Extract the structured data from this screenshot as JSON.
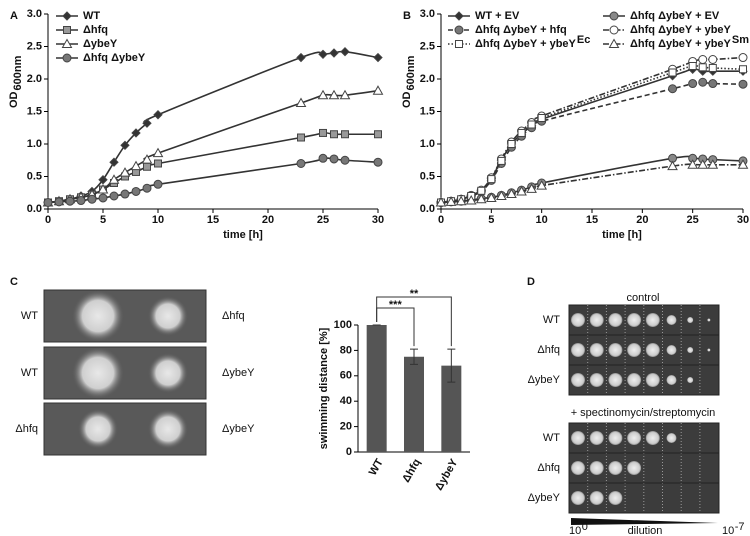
{
  "chart_data": [
    {
      "type": "line",
      "panel": "A",
      "xlabel": "time [h]",
      "ylabel": "OD",
      "ylabel_sub": "600nm",
      "x": [
        0,
        1,
        2,
        3,
        4,
        5,
        6,
        7,
        8,
        9,
        10,
        23,
        25,
        26,
        27,
        30
      ],
      "xlim": [
        0,
        30
      ],
      "xticks": [
        0,
        5,
        10,
        15,
        20,
        25,
        30
      ],
      "ylim": [
        0,
        3
      ],
      "yticks": [
        {
          "value": 0,
          "label": "0.0"
        },
        0.5,
        {
          "value": 1,
          "label": "1.0"
        },
        1.5,
        {
          "value": 2,
          "label": "2.0"
        },
        2.5,
        {
          "value": 3,
          "label": "3.0"
        }
      ],
      "series": [
        {
          "name": "WT",
          "color": "#333333",
          "marker": "diamond",
          "dash": "solid",
          "values": [
            0.1,
            0.12,
            0.15,
            0.2,
            0.27,
            0.45,
            0.72,
            0.98,
            1.17,
            1.32,
            1.45,
            2.33,
            2.38,
            2.4,
            2.42,
            2.33
          ]
        },
        {
          "name": "Δhfq",
          "color": "#999999",
          "marker": "square",
          "dash": "solid",
          "values": [
            0.1,
            0.12,
            0.15,
            0.18,
            0.22,
            0.3,
            0.4,
            0.5,
            0.57,
            0.65,
            0.7,
            1.1,
            1.17,
            1.15,
            1.15,
            1.15
          ]
        },
        {
          "name": "ΔybeY",
          "color": "#ffffff",
          "marker": "triangle",
          "dash": "solid",
          "values": [
            0.1,
            0.12,
            0.15,
            0.18,
            0.22,
            0.3,
            0.45,
            0.56,
            0.66,
            0.76,
            0.86,
            1.63,
            1.75,
            1.75,
            1.75,
            1.82
          ]
        },
        {
          "name": "Δhfq ΔybeY",
          "color": "#777777",
          "marker": "circle",
          "dash": "solid",
          "values": [
            0.1,
            0.11,
            0.12,
            0.13,
            0.15,
            0.17,
            0.2,
            0.23,
            0.27,
            0.32,
            0.38,
            0.7,
            0.78,
            0.77,
            0.75,
            0.72
          ]
        }
      ]
    },
    {
      "type": "line",
      "panel": "B",
      "xlabel": "time [h]",
      "ylabel": "OD",
      "ylabel_sub": "600nm",
      "x": [
        0,
        1,
        2,
        3,
        4,
        5,
        6,
        7,
        8,
        9,
        10,
        23,
        25,
        26,
        27,
        30
      ],
      "xlim": [
        0,
        30
      ],
      "xticks": [
        0,
        5,
        10,
        15,
        20,
        25,
        30
      ],
      "ylim": [
        0,
        3
      ],
      "yticks": [
        {
          "value": 0,
          "label": "0.0"
        },
        0.5,
        {
          "value": 1,
          "label": "1.0"
        },
        1.5,
        {
          "value": 2,
          "label": "2.0"
        },
        2.5,
        {
          "value": 3,
          "label": "3.0"
        }
      ],
      "series": [
        {
          "name": "WT + EV",
          "color": "#333333",
          "marker": "diamond",
          "dash": "solid",
          "values": [
            0.1,
            0.12,
            0.15,
            0.2,
            0.28,
            0.47,
            0.75,
            1.0,
            1.15,
            1.28,
            1.38,
            2.05,
            2.15,
            2.12,
            2.12,
            2.12
          ]
        },
        {
          "name": "Δhfq ΔybeY + EV",
          "color": "#888888",
          "marker": "circle",
          "dash": "solid",
          "values": [
            0.1,
            0.11,
            0.12,
            0.14,
            0.16,
            0.18,
            0.21,
            0.25,
            0.29,
            0.34,
            0.4,
            0.78,
            0.78,
            0.77,
            0.76,
            0.74
          ]
        },
        {
          "name": "Δhfq ΔybeY + hfq",
          "color": "#777777",
          "marker": "circle",
          "dash": "dash",
          "values": [
            0.1,
            0.12,
            0.15,
            0.2,
            0.27,
            0.44,
            0.7,
            0.95,
            1.12,
            1.25,
            1.35,
            1.85,
            1.93,
            1.95,
            1.93,
            1.92
          ]
        },
        {
          "name": "Δhfq ΔybeY + ybeY",
          "color": "#ffffff",
          "marker": "circle",
          "dash": "dashdot",
          "values": [
            0.1,
            0.12,
            0.15,
            0.21,
            0.29,
            0.48,
            0.77,
            1.03,
            1.2,
            1.33,
            1.43,
            2.15,
            2.27,
            2.3,
            2.3,
            2.33
          ]
        },
        {
          "name": "Δhfq ΔybeY + ybeY",
          "name_sup": "Ec",
          "color": "#ffffff",
          "marker": "square",
          "dash": "dot",
          "values": [
            0.1,
            0.12,
            0.15,
            0.2,
            0.28,
            0.46,
            0.74,
            1.0,
            1.17,
            1.3,
            1.4,
            2.1,
            2.2,
            2.18,
            2.17,
            2.15
          ]
        },
        {
          "name": "Δhfq ΔybeY + ybeY",
          "name_sup": "Sm",
          "color": "#ffffff",
          "marker": "triangle",
          "dash": "dashdot",
          "values": [
            0.1,
            0.11,
            0.12,
            0.13,
            0.15,
            0.17,
            0.2,
            0.23,
            0.27,
            0.31,
            0.36,
            0.66,
            0.68,
            0.68,
            0.68,
            0.68
          ]
        }
      ]
    },
    {
      "type": "bar",
      "panel": "C",
      "ylabel": "swimming distance [%]",
      "categories": [
        "WT",
        "Δhfq",
        "ΔybeY"
      ],
      "values": [
        100,
        75,
        68
      ],
      "errors": [
        0,
        6,
        13
      ],
      "color": "#555555",
      "ylim": [
        0,
        100
      ],
      "yticks": [
        0,
        20,
        40,
        60,
        80,
        100
      ],
      "annotations": [
        "***",
        "**"
      ]
    }
  ],
  "swim_photos": {
    "rows": [
      [
        "WT",
        "Δhfq"
      ],
      [
        "WT",
        "ΔybeY"
      ],
      [
        "Δhfq",
        "ΔybeY"
      ]
    ]
  },
  "spot_assay": {
    "panel": "D",
    "control": "control",
    "treated": "+ spectinomycin/streptomycin",
    "rows": [
      "WT",
      "Δhfq",
      "ΔybeY"
    ],
    "scale_start": "10",
    "scale_start_exp": "0",
    "scale_end": "10",
    "scale_end_exp": "-7",
    "scale_label": "dilution"
  }
}
